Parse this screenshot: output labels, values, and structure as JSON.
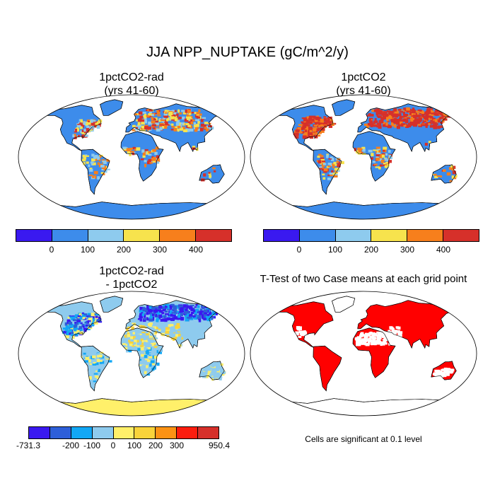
{
  "title": "JJA NPP_NUPTAKE (gC/m^2/y)",
  "panels": {
    "p1": {
      "title1": "1pctCO2-rad",
      "title2": "(yrs 41-60)"
    },
    "p2": {
      "title1": "1pctCO2",
      "title2": "(yrs 41-60)"
    },
    "p3": {
      "title1": "1pctCO2-rad",
      "title2": "- 1pctCO2"
    },
    "p4": {
      "title1": "T-Test of two Case means at each grid point"
    }
  },
  "colorbar_top": {
    "colors": [
      "#3a19f0",
      "#3d8ceb",
      "#8ecbee",
      "#f7e34d",
      "#f77f1c",
      "#d6302a"
    ],
    "ticks": [
      "0",
      "100",
      "200",
      "300",
      "400"
    ]
  },
  "colorbar_bottom": {
    "colors": [
      "#3a19f0",
      "#2e5fd9",
      "#12a7f5",
      "#8ecbee",
      "#fff06a",
      "#f9d33a",
      "#fb9214",
      "#fb1d0e",
      "#d6302a"
    ],
    "ticks": [
      "-731.3",
      "-200",
      "-100",
      "0",
      "100",
      "200",
      "300",
      "950.4"
    ]
  },
  "significance_note": "Cells are significant at 0.1 level",
  "significance_color": "#ff0000"
}
